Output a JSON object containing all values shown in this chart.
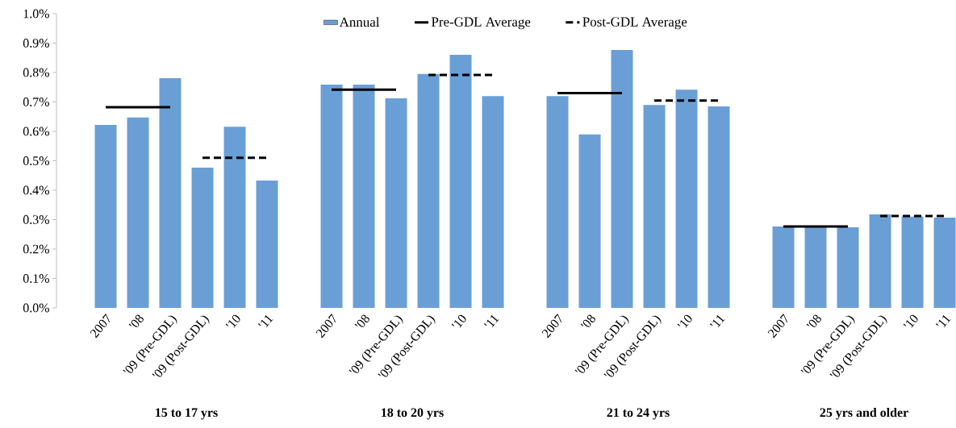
{
  "chart_data": {
    "type": "bar",
    "categories": [
      "2007",
      "'08",
      "'09 (Pre-GDL)",
      "'09 (Post-GDL)",
      "'10",
      "'11",
      null,
      "2007",
      "'08",
      "'09 (Pre-GDL)",
      "'09 (Post-GDL)",
      "'10",
      "'11",
      null,
      "2007",
      "'08",
      "'09 (Pre-GDL)",
      "'09 (Post-GDL)",
      "'10",
      "'11",
      null,
      "2007",
      "'08",
      "'09 (Pre-GDL)",
      "'09 (Post-GDL)",
      "'10",
      "'11"
    ],
    "series": [
      {
        "name": "Annual",
        "color": "#6a9fd6",
        "values": [
          0.622,
          0.647,
          0.781,
          0.477,
          0.616,
          0.433,
          null,
          0.759,
          0.759,
          0.712,
          0.795,
          0.86,
          0.72,
          null,
          0.72,
          0.59,
          0.877,
          0.69,
          0.742,
          0.685,
          null,
          0.277,
          0.276,
          0.274,
          0.318,
          0.31,
          0.307
        ]
      },
      {
        "name": "Pre-GDL Average",
        "type": "line",
        "color": "#000000",
        "line_style": "solid",
        "values": [
          0.682,
          0.682,
          0.682,
          null,
          null,
          null,
          null,
          0.742,
          0.742,
          0.742,
          null,
          null,
          null,
          null,
          0.73,
          0.73,
          0.73,
          null,
          null,
          null,
          null,
          0.277,
          0.277,
          0.277,
          null,
          null,
          null
        ]
      },
      {
        "name": "Post-GDL Average",
        "type": "line",
        "color": "#000000",
        "line_style": "dashed",
        "values": [
          null,
          null,
          null,
          0.51,
          0.51,
          0.51,
          null,
          null,
          null,
          null,
          0.792,
          0.792,
          0.792,
          null,
          null,
          null,
          null,
          0.705,
          0.705,
          0.705,
          null,
          null,
          null,
          null,
          0.312,
          0.312,
          0.312
        ]
      }
    ],
    "ylim": [
      0,
      1.0
    ],
    "yticks": [
      {
        "value": 0.0,
        "label": "0.0%"
      },
      {
        "value": 0.1,
        "label": "0.1%"
      },
      {
        "value": 0.2,
        "label": "0.2%"
      },
      {
        "value": 0.3,
        "label": "0.3%"
      },
      {
        "value": 0.4,
        "label": "0.4%"
      },
      {
        "value": 0.5,
        "label": "0.5%"
      },
      {
        "value": 0.6,
        "label": "0.6%"
      },
      {
        "value": 0.7,
        "label": "0.7%"
      },
      {
        "value": 0.8,
        "label": "0.8%"
      },
      {
        "value": 0.9,
        "label": "0.9%"
      },
      {
        "value": 1.0,
        "label": "1.0%"
      }
    ],
    "annotations": [
      "15 to 17 yrs",
      "18 to 20 yrs",
      "21 to 24 yrs",
      "25 yrs and older"
    ],
    "legend": "top",
    "marker": "none"
  }
}
